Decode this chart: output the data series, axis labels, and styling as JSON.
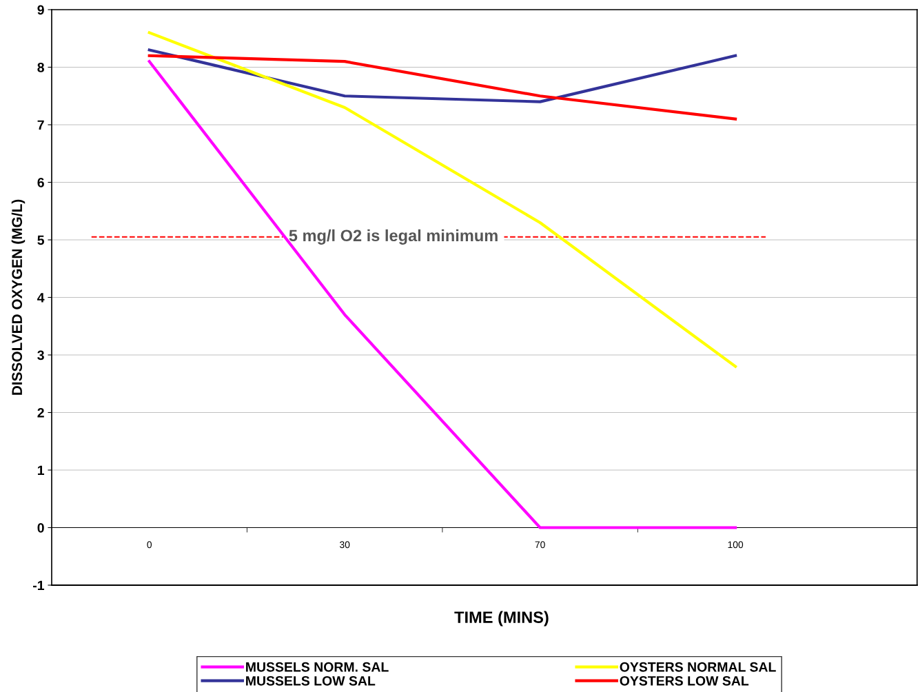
{
  "chart_data": {
    "type": "line",
    "xlabel": "TIME (MINS)",
    "ylabel": "DISSOLVED OXYGEN (MG/L)",
    "categories": [
      "0",
      "30",
      "70",
      "100"
    ],
    "series": [
      {
        "name": "MUSSELS NORM. SAL",
        "color": "#ff00ff",
        "values": [
          8.1,
          3.7,
          0,
          0
        ]
      },
      {
        "name": "MUSSELS LOW SAL",
        "color": "#333399",
        "values": [
          8.3,
          7.5,
          7.4,
          8.2
        ]
      },
      {
        "name": "OYSTERS NORMAL SAL",
        "color": "#ffff00",
        "values": [
          8.6,
          7.3,
          5.3,
          2.8
        ]
      },
      {
        "name": "OYSTERS LOW SAL",
        "color": "#ff0000",
        "values": [
          8.2,
          8.1,
          7.5,
          7.1
        ]
      }
    ],
    "ylim": [
      -1,
      9
    ],
    "yticks": [
      -1,
      0,
      1,
      2,
      3,
      4,
      5,
      6,
      7,
      8,
      9
    ],
    "ref_lines": [
      {
        "axis": "y",
        "value": 5.05,
        "label": "5 mg/l O2 is legal minimum",
        "color": "#ff0000",
        "line_style": "dashed"
      }
    ],
    "grid": "y",
    "legend": "bottom",
    "marker": "none",
    "line_style": "solid"
  }
}
